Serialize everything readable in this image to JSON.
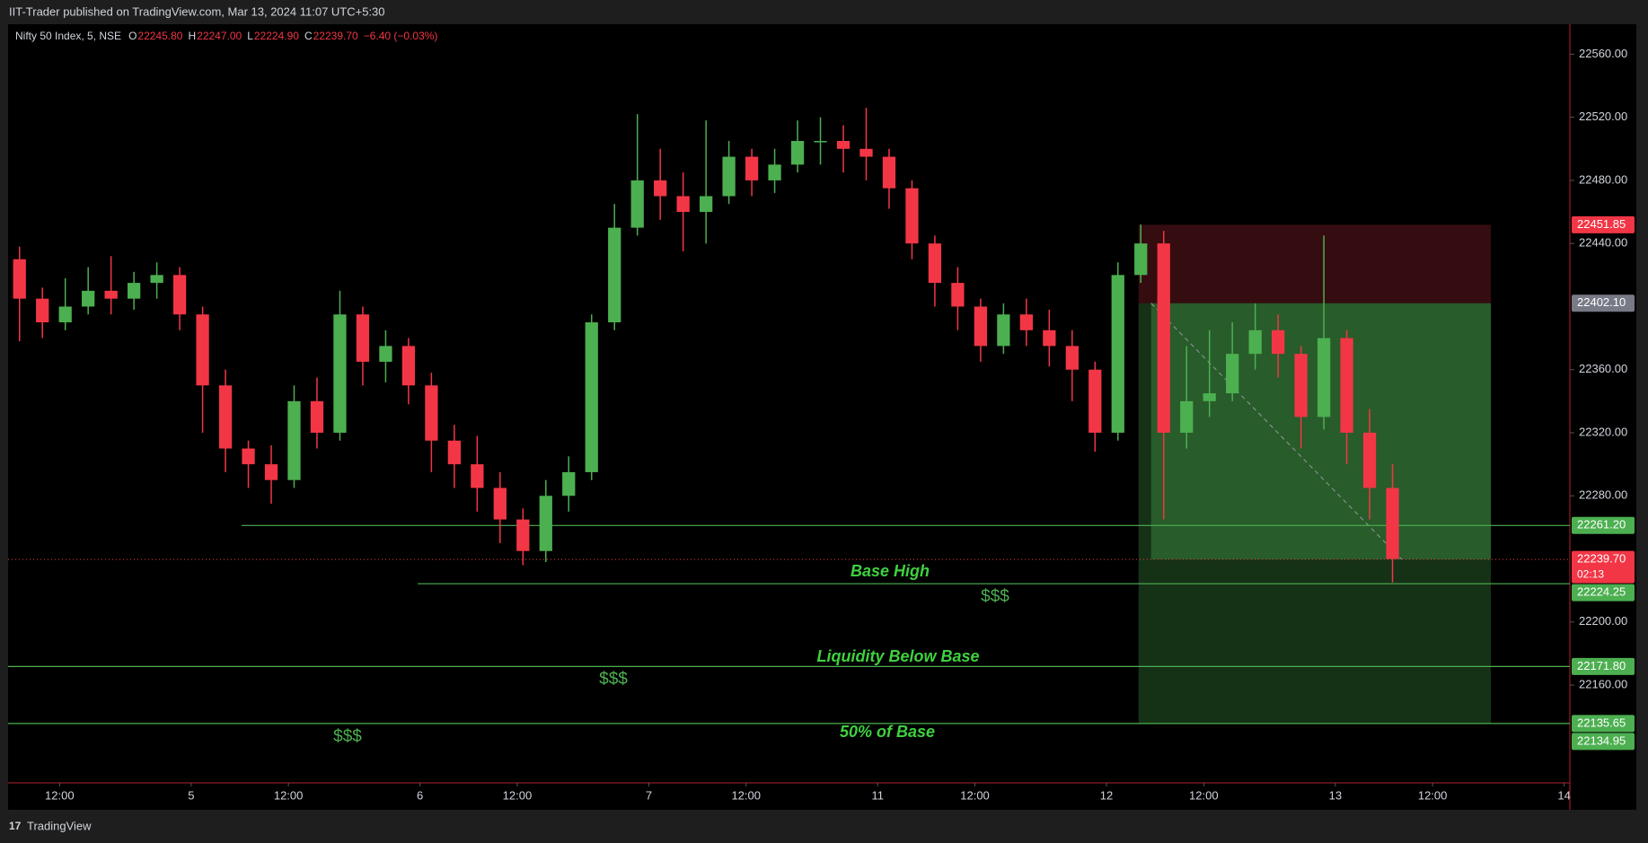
{
  "header": {
    "publisher": "IIT-Trader published on TradingView.com, Mar 13, 2024 11:07 UTC+5:30",
    "brand": "TradingView"
  },
  "legend": {
    "symbol": "Nifty 50 Index, 5, NSE",
    "fields": [
      {
        "key": "O",
        "value": "22245.80"
      },
      {
        "key": "H",
        "value": "22247.00"
      },
      {
        "key": "L",
        "value": "22224.90"
      },
      {
        "key": "C",
        "value": "22239.70"
      }
    ],
    "change": "−6.40 (−0.03%)"
  },
  "chart_data": {
    "type": "candlestick",
    "up_color": "#4caf50",
    "down_color": "#f23645",
    "open": [
      22430,
      22405,
      22390,
      22400,
      22410,
      22405,
      22415,
      22420,
      22395,
      22350,
      22310,
      22300,
      22290,
      22340,
      22320,
      22395,
      22365,
      22375,
      22350,
      22315,
      22300,
      22285,
      22265,
      22245,
      22280,
      22295,
      22390,
      22450,
      22480,
      22470,
      22460,
      22470,
      22495,
      22480,
      22490,
      22505,
      22505,
      22500,
      22495,
      22475,
      22440,
      22415,
      22400,
      22375,
      22395,
      22385,
      22375,
      22360,
      22320,
      22420,
      22440,
      22320,
      22340,
      22345,
      22370,
      22385,
      22370,
      22330,
      22380,
      22320,
      22285
    ],
    "high": [
      22438,
      22412,
      22418,
      22425,
      22432,
      22422,
      22428,
      22425,
      22400,
      22360,
      22315,
      22312,
      22350,
      22355,
      22410,
      22400,
      22385,
      22380,
      22358,
      22325,
      22318,
      22295,
      22272,
      22290,
      22305,
      22395,
      22465,
      22522,
      22500,
      22485,
      22518,
      22505,
      22500,
      22500,
      22518,
      22520,
      22515,
      22526,
      22500,
      22480,
      22445,
      22425,
      22405,
      22402,
      22405,
      22398,
      22385,
      22365,
      22428,
      22452,
      22448,
      22375,
      22385,
      22390,
      22402,
      22395,
      22375,
      22445,
      22385,
      22335,
      22300
    ],
    "low": [
      22378,
      22380,
      22385,
      22395,
      22395,
      22398,
      22405,
      22385,
      22320,
      22295,
      22285,
      22275,
      22285,
      22310,
      22315,
      22350,
      22352,
      22338,
      22295,
      22285,
      22270,
      22250,
      22236,
      22238,
      22270,
      22290,
      22385,
      22445,
      22455,
      22435,
      22440,
      22465,
      22470,
      22472,
      22485,
      22490,
      22485,
      22480,
      22462,
      22430,
      22400,
      22385,
      22365,
      22370,
      22375,
      22362,
      22340,
      22308,
      22315,
      22415,
      22265,
      22310,
      22330,
      22340,
      22360,
      22355,
      22310,
      22322,
      22300,
      22265,
      22225
    ],
    "close": [
      22405,
      22390,
      22400,
      22410,
      22405,
      22415,
      22420,
      22395,
      22350,
      22310,
      22300,
      22290,
      22340,
      22320,
      22395,
      22365,
      22375,
      22350,
      22315,
      22300,
      22285,
      22265,
      22245,
      22280,
      22295,
      22390,
      22450,
      22480,
      22470,
      22460,
      22470,
      22495,
      22480,
      22490,
      22505,
      22505,
      22500,
      22495,
      22475,
      22440,
      22415,
      22400,
      22375,
      22395,
      22385,
      22375,
      22360,
      22320,
      22420,
      22440,
      22320,
      22340,
      22345,
      22370,
      22385,
      22370,
      22330,
      22380,
      22320,
      22285,
      22240
    ],
    "xlim": [
      0,
      68.25
    ],
    "xticks": [
      {
        "value": 2.25,
        "label": "12:00"
      },
      {
        "value": 8,
        "label": "5"
      },
      {
        "value": 12.25,
        "label": "12:00"
      },
      {
        "value": 18,
        "label": "6"
      },
      {
        "value": 22.25,
        "label": "12:00"
      },
      {
        "value": 28,
        "label": "7"
      },
      {
        "value": 32.25,
        "label": "12:00"
      },
      {
        "value": 38,
        "label": "11"
      },
      {
        "value": 42.25,
        "label": "12:00"
      },
      {
        "value": 48,
        "label": "12"
      },
      {
        "value": 52.25,
        "label": "12:00"
      },
      {
        "value": 58,
        "label": "13"
      },
      {
        "value": 62.25,
        "label": "12:00"
      },
      {
        "value": 68,
        "label": "14"
      }
    ],
    "ylim": [
      22098,
      22579
    ],
    "yticks": [
      {
        "value": 22160,
        "label": "22160.00"
      },
      {
        "value": 22200,
        "label": "22200.00"
      },
      {
        "value": 22280,
        "label": "22280.00"
      },
      {
        "value": 22320,
        "label": "22320.00"
      },
      {
        "value": 22360,
        "label": "22360.00"
      },
      {
        "value": 22440,
        "label": "22440.00"
      },
      {
        "value": 22480,
        "label": "22480.00"
      },
      {
        "value": 22520,
        "label": "22520.00"
      },
      {
        "value": 22560,
        "label": "22560.00"
      }
    ],
    "levels": [
      {
        "price": 22261.2,
        "from": 10.2,
        "color": "#4caf50"
      },
      {
        "price": 22224.25,
        "from": 17.9,
        "color": "#4caf50"
      },
      {
        "price": 22171.8,
        "from": 0,
        "color": "#4caf50"
      },
      {
        "price": 22135.65,
        "from": 0,
        "color": "#4caf50"
      }
    ],
    "current_price": 22239.7,
    "position": {
      "x0": 49.4,
      "x1": 64.8,
      "profit_x0": 49.95,
      "current_x": 60.9,
      "stop": 22451.85,
      "entry": 22402.1,
      "target": 22135.65
    },
    "annotations": [
      {
        "text": "Base High"
      },
      {
        "text": "$$$"
      },
      {
        "text": "Liquidity Below Base"
      },
      {
        "text": "$$$"
      },
      {
        "text": "50% of Base"
      },
      {
        "text": "$$$"
      }
    ],
    "price_tags": [
      {
        "value": 22451.85,
        "label": "22451.85",
        "color": "#f23645"
      },
      {
        "value": 22402.1,
        "label": "22402.10",
        "color": "#787b86"
      },
      {
        "value": 22261.2,
        "label": "22261.20",
        "color": "#4caf50"
      },
      {
        "value": 22239.7,
        "label": "22239.70",
        "sub": "02:13",
        "color": "#f23645"
      },
      {
        "value": 22224.25,
        "label": "22224.25",
        "color": "#4caf50"
      },
      {
        "value": 22171.8,
        "label": "22171.80",
        "color": "#4caf50"
      },
      {
        "value": 22135.65,
        "label": "22135.65",
        "color": "#4caf50"
      },
      {
        "value": 22134.95,
        "label": "22134.95",
        "color": "#4caf50"
      }
    ]
  }
}
